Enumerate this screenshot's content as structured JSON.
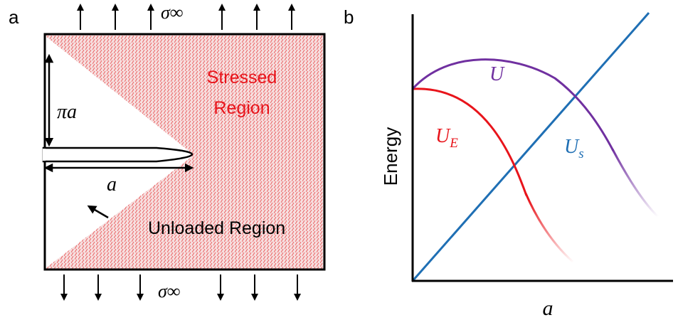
{
  "panels": [
    {
      "label": "a",
      "stress_top": "σ∞",
      "stress_bottom": "σ∞",
      "stressed_region": [
        "Stressed",
        "Region"
      ],
      "crack_height": "πa",
      "crack_length": "a",
      "unloaded_region": "Unloaded Region"
    },
    {
      "label": "b",
      "y_axis_label": "Energy",
      "x_axis_label": "a",
      "curves": [
        {
          "base": "U",
          "sub": null,
          "color": "#7030a0"
        },
        {
          "base": "U",
          "sub": "E",
          "color": "#e8141b"
        },
        {
          "base": "U",
          "sub": "s",
          "color": "#1f6fb4"
        }
      ]
    }
  ]
}
